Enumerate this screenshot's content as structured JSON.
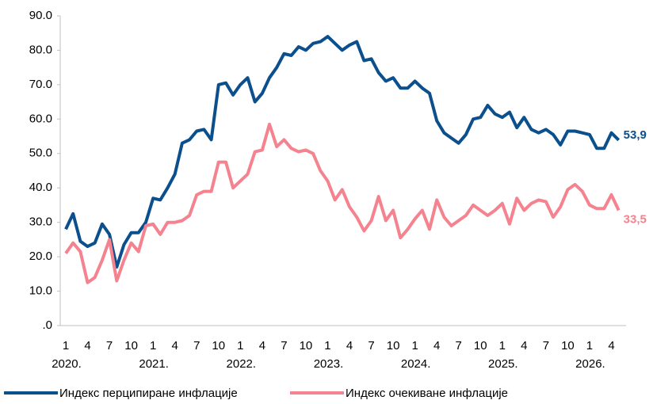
{
  "chart_data": {
    "type": "line",
    "categories": [
      "1",
      null,
      null,
      "4",
      null,
      null,
      "7",
      null,
      null,
      "10",
      null,
      null,
      "1",
      null,
      null,
      "4",
      null,
      null,
      "7",
      null,
      null,
      "10",
      null,
      null,
      "1",
      null,
      null,
      "4",
      null,
      null,
      "7",
      null,
      null,
      "10",
      null,
      null,
      "1",
      null,
      null,
      "4",
      null,
      null,
      "7",
      null,
      null,
      "10",
      null,
      null,
      "1",
      null,
      null,
      "4",
      null,
      null,
      "7",
      null,
      null,
      "10",
      null,
      null,
      "1",
      null,
      null,
      "4",
      null,
      null,
      "7",
      null,
      null,
      "10",
      null,
      null,
      "1",
      null,
      null,
      "4",
      null
    ],
    "years": [
      "2020.",
      "2021.",
      "2022.",
      "2023.",
      "2024.",
      "2025.",
      "2026."
    ],
    "series": [
      {
        "name": "Индекс перципиране инфлације",
        "color": "#0b4f8c",
        "values": [
          28,
          32.5,
          24.5,
          23,
          24,
          29.5,
          26.5,
          17,
          23.5,
          27,
          27,
          30,
          37,
          36.5,
          40,
          44,
          53,
          54,
          56.5,
          57,
          54,
          70,
          70.5,
          67,
          70,
          72,
          65,
          67.5,
          72,
          75,
          79,
          78.5,
          81,
          80,
          82,
          82.5,
          84,
          82,
          80,
          81.5,
          82.5,
          77,
          77.5,
          73.5,
          71,
          72,
          69,
          69,
          71,
          69,
          67.5,
          59.5,
          56,
          54.5,
          53,
          55.5,
          60,
          60.5,
          64,
          61.5,
          60.5,
          62,
          57.5,
          60.5,
          57,
          56,
          57,
          55.5,
          52.5,
          56.5,
          56.5,
          56,
          55.5,
          51.5,
          51.5,
          56,
          53.9
        ],
        "value_labels": [
          null,
          null,
          null,
          null,
          null,
          null,
          null,
          null,
          null,
          null,
          null,
          null,
          null,
          null,
          null,
          null,
          null,
          null,
          null,
          null,
          null,
          null,
          null,
          null,
          null,
          null,
          null,
          null,
          null,
          null,
          null,
          null,
          null,
          null,
          null,
          null,
          null,
          null,
          null,
          null,
          null,
          null,
          null,
          null,
          null,
          null,
          null,
          null,
          null,
          null,
          null,
          null,
          null,
          null,
          null,
          null,
          null,
          null,
          null,
          null,
          null,
          null,
          null,
          null,
          null,
          null,
          null,
          null,
          null,
          null,
          null,
          null,
          null,
          null,
          null,
          null,
          "53,9"
        ]
      },
      {
        "name": "Индекс очекиване инфлације",
        "color": "#f4838f",
        "values": [
          21,
          24,
          21.5,
          12.5,
          14,
          19,
          25,
          13,
          19,
          24,
          21.5,
          29,
          29.5,
          26.5,
          30,
          30,
          30.5,
          32,
          38,
          39,
          39,
          47.5,
          47.5,
          40,
          42,
          44,
          50.5,
          51,
          58.5,
          52,
          54,
          51.5,
          50.5,
          51,
          50,
          45,
          42,
          36.5,
          39.5,
          34.5,
          31.5,
          27.5,
          30.5,
          37.5,
          30.5,
          33.5,
          25.5,
          28,
          31,
          33.5,
          28,
          36.5,
          31.5,
          29,
          30.5,
          32,
          35,
          33.5,
          32,
          33.5,
          35.5,
          29.5,
          37,
          33.5,
          35.5,
          36.5,
          36,
          31.5,
          34.5,
          39.5,
          41,
          39,
          35,
          34,
          34,
          38,
          33.5
        ],
        "value_labels": [
          null,
          null,
          null,
          null,
          null,
          null,
          null,
          null,
          null,
          null,
          null,
          null,
          null,
          null,
          null,
          null,
          null,
          null,
          null,
          null,
          null,
          null,
          null,
          null,
          null,
          null,
          null,
          null,
          null,
          null,
          null,
          null,
          null,
          null,
          null,
          null,
          null,
          null,
          null,
          null,
          null,
          null,
          null,
          null,
          null,
          null,
          null,
          null,
          null,
          null,
          null,
          null,
          null,
          null,
          null,
          null,
          null,
          null,
          null,
          null,
          null,
          null,
          null,
          null,
          null,
          null,
          null,
          null,
          null,
          null,
          null,
          null,
          null,
          null,
          null,
          null,
          "33,5"
        ]
      }
    ],
    "ylim": [
      0,
      90
    ],
    "yticks": [
      {
        "value": 0,
        "label": ".0"
      },
      {
        "value": 10,
        "label": "10.0"
      },
      {
        "value": 20,
        "label": "20.0"
      },
      {
        "value": 30,
        "label": "30.0"
      },
      {
        "value": 40,
        "label": "40.0"
      },
      {
        "value": 50,
        "label": "50.0"
      },
      {
        "value": 60,
        "label": "60.0"
      },
      {
        "value": 70,
        "label": "70.0"
      },
      {
        "value": 80,
        "label": "80.0"
      },
      {
        "value": 90,
        "label": "90.0"
      }
    ],
    "grid": false,
    "legend": "bottom"
  }
}
